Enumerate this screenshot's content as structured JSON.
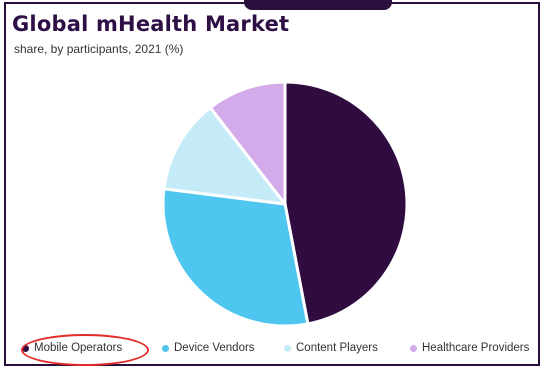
{
  "title": "Global mHealth Market",
  "subtitle": "share, by participants, 2021 (%)",
  "colors": {
    "frame": "#2b0f3d",
    "title": "#2d0f45",
    "highlight": "#e02b27"
  },
  "chart_data": {
    "type": "pie",
    "title": "Global mHealth Market",
    "subtitle": "share, by participants, 2021 (%)",
    "start_angle_deg": 0,
    "direction": "clockwise",
    "legend_position": "bottom",
    "slices": [
      {
        "label": "Mobile Operators",
        "value": 47,
        "color": "#300b40"
      },
      {
        "label": "Device Vendors",
        "value": 30,
        "color": "#4fc6f0"
      },
      {
        "label": "Content Players",
        "value": 12.5,
        "color": "#c6ebf8"
      },
      {
        "label": "Healthcare Providers",
        "value": 10.5,
        "color": "#d3aaea"
      }
    ]
  }
}
